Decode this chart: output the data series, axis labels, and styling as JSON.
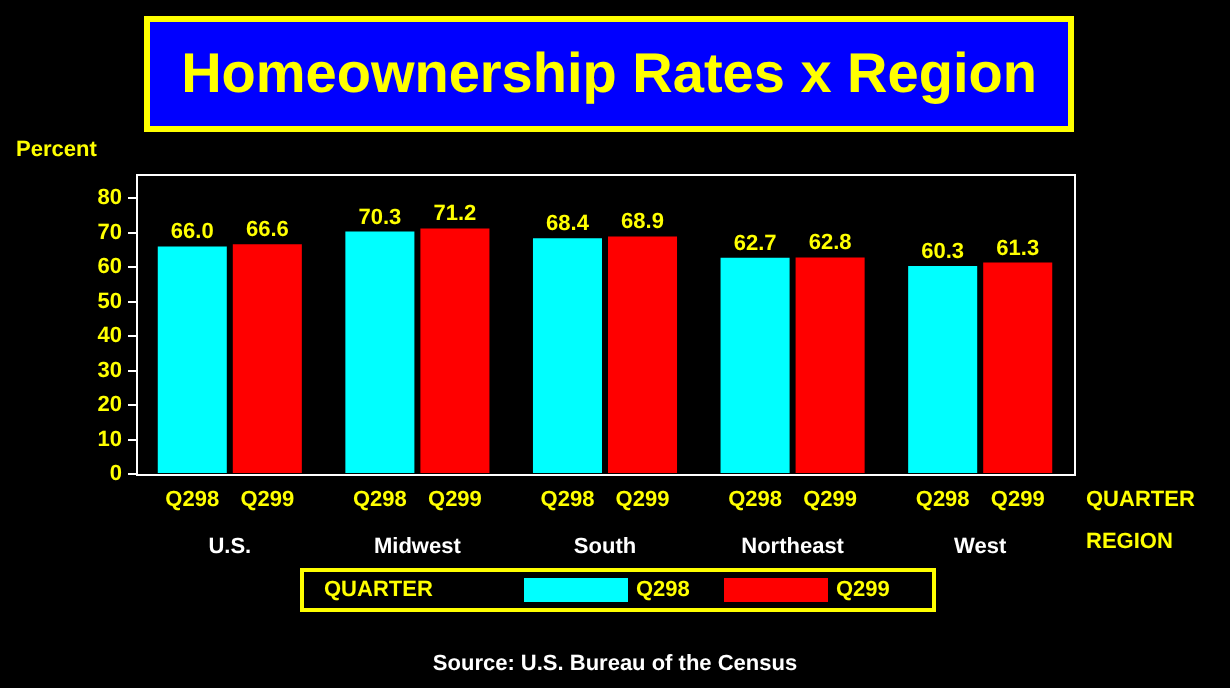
{
  "chart_data": {
    "type": "bar",
    "title": "Homeownership Rates x Region",
    "ylabel": "Percent",
    "xlabel": "REGION",
    "legend_title": "QUARTER",
    "categories": [
      "U.S.",
      "Midwest",
      "South",
      "Northeast",
      "West"
    ],
    "series": [
      {
        "name": "Q298",
        "color": "#00ffff",
        "values": [
          66.0,
          70.3,
          68.4,
          62.7,
          60.3
        ],
        "value_labels": [
          "66.0",
          "70.3",
          "68.4",
          "62.7",
          "60.3"
        ]
      },
      {
        "name": "Q299",
        "color": "#ff0000",
        "values": [
          66.6,
          71.2,
          68.9,
          62.8,
          61.3
        ],
        "value_labels": [
          "66.6",
          "71.2",
          "68.9",
          "62.8",
          "61.3"
        ]
      }
    ],
    "ylim": [
      0,
      87
    ],
    "yticks": [
      0,
      10,
      20,
      30,
      40,
      50,
      60,
      70,
      80
    ],
    "legend": "bottom",
    "annotations": [
      "Source:  U.S. Bureau of the Census"
    ]
  }
}
